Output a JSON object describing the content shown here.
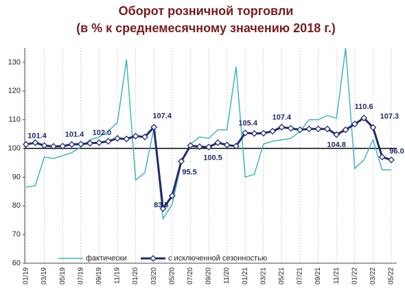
{
  "chart_data": {
    "type": "line",
    "title": "Оборот розничной торговли",
    "subtitle": "(в % к среднемесячному значению 2018 г.)",
    "categories": [
      "01/19",
      null,
      "03/19",
      null,
      "05/19",
      null,
      "07/19",
      null,
      "09/19",
      null,
      "11/19",
      null,
      "01/20",
      null,
      "03/20",
      null,
      "05/20",
      null,
      "07/20",
      null,
      "09/20",
      null,
      "11/20",
      null,
      "01/21",
      null,
      "03/21",
      null,
      "05/21",
      null,
      "07/21",
      null,
      "09/21",
      null,
      "11/21",
      null,
      "01/22",
      null,
      "03/22",
      null,
      "05/22"
    ],
    "series": [
      {
        "name": "фактически",
        "color": "#3fb3c4",
        "values": [
          86.5,
          87,
          97,
          96.5,
          97.5,
          98.5,
          100.5,
          103,
          104,
          106,
          109,
          131,
          89,
          91.5,
          107,
          75.5,
          80.5,
          95,
          101.5,
          104,
          103.5,
          106.5,
          106.5,
          128.5,
          90,
          91,
          101.5,
          102.5,
          103,
          103.5,
          106,
          110,
          110,
          111.5,
          110.5,
          135,
          93,
          96,
          103,
          92.5,
          92.5
        ]
      },
      {
        "name": "с исключенной сезонностью",
        "color": "#1f2a6e",
        "marker": "diamond",
        "values": [
          101.4,
          102,
          101,
          100.7,
          100.8,
          101.4,
          101.5,
          101.8,
          102.0,
          102.5,
          103.5,
          103.3,
          104.3,
          104.0,
          107.4,
          79,
          83.5,
          95.5,
          101,
          100.6,
          100.5,
          102,
          101.2,
          100.8,
          105.4,
          105.2,
          105.3,
          106,
          107.4,
          107,
          106.5,
          106.8,
          106.8,
          106.8,
          104.8,
          106.5,
          108.5,
          110.6,
          107.3,
          97,
          96.0
        ],
        "value_labels": [
          "101.4",
          null,
          null,
          null,
          null,
          "101.4",
          null,
          null,
          "102.0",
          null,
          null,
          null,
          null,
          null,
          "107.4",
          null,
          "83.5",
          "95.5",
          null,
          null,
          "100.5",
          null,
          null,
          null,
          "105.4",
          null,
          null,
          null,
          "107.4",
          null,
          null,
          null,
          null,
          null,
          "104.8",
          null,
          null,
          "110.6",
          "107.3",
          null,
          "96.0"
        ]
      }
    ],
    "ylim": [
      60,
      135
    ],
    "yticks": [
      60,
      70,
      80,
      90,
      100,
      110,
      120,
      130
    ],
    "reference_line": 100,
    "grid": "x",
    "legend": "bottom"
  }
}
